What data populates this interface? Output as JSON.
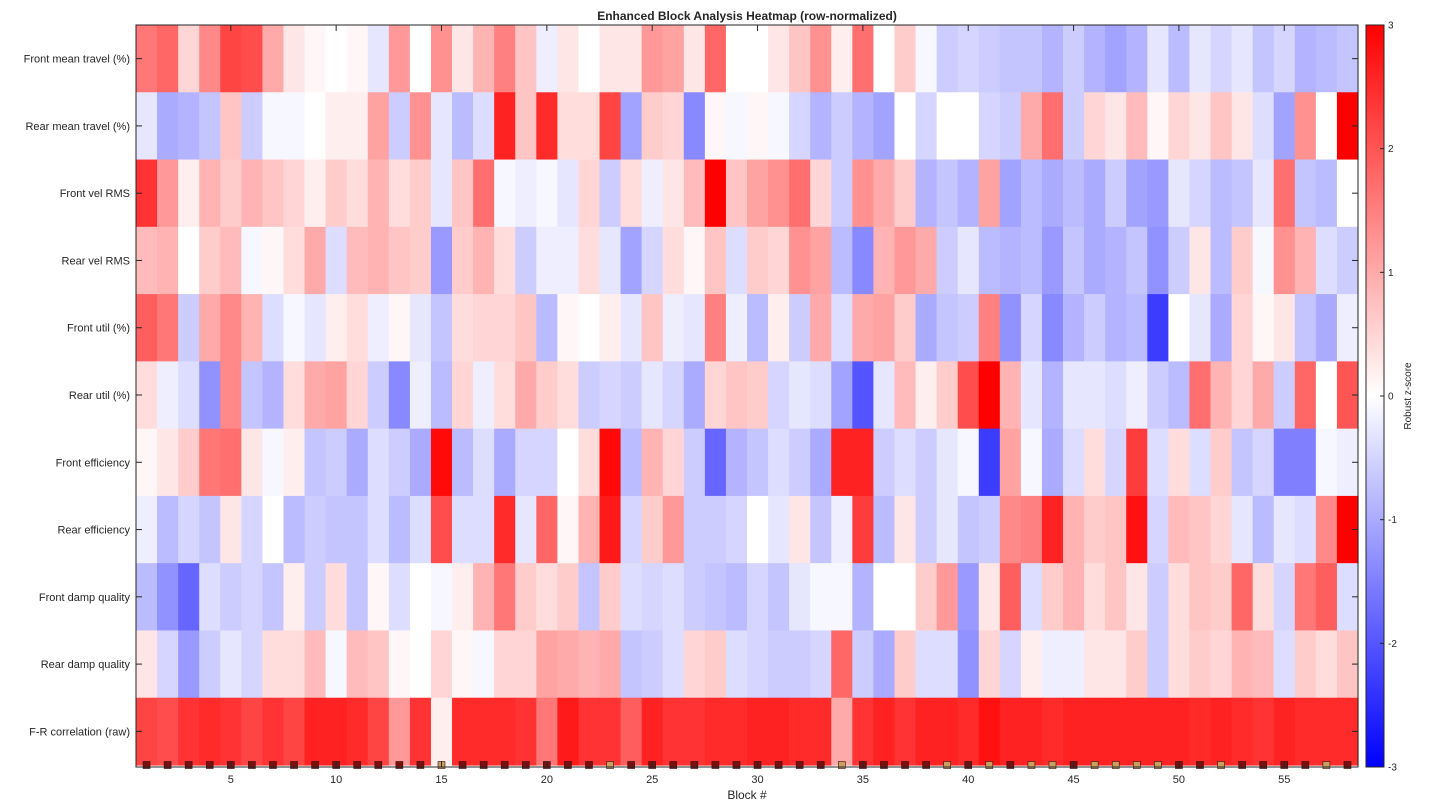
{
  "chart_data": {
    "type": "heatmap",
    "title": "Enhanced Block Analysis Heatmap (row-normalized)",
    "xlabel": "Block #",
    "ylabel": "",
    "x_range": [
      1,
      58
    ],
    "x_ticks": [
      5,
      10,
      15,
      20,
      25,
      30,
      35,
      40,
      45,
      50,
      55
    ],
    "rows": [
      "Front mean travel (%)",
      "Rear mean travel (%)",
      "Front vel RMS",
      "Rear vel RMS",
      "Front util (%)",
      "Rear util (%)",
      "Front efficiency",
      "Rear efficiency",
      "Front damp quality",
      "Rear damp quality",
      "F-R correlation (raw)"
    ],
    "colorbar": {
      "label": "Robust z-score",
      "range": [
        -3,
        3
      ],
      "ticks": [
        3,
        2,
        1,
        0,
        -1,
        -2,
        -3
      ],
      "colormap": "blue-white-red",
      "low_color": "#0000ff",
      "mid_color": "#ffffff",
      "high_color": "#ff0000"
    },
    "marker_colors": {
      "dark": "#7a0f0f",
      "highlight": "#c8a060"
    },
    "block_markers": [
      "dark",
      "dark",
      "dark",
      "dark",
      "dark",
      "dark",
      "dark",
      "dark",
      "dark",
      "dark",
      "dark",
      "dark",
      "dark",
      "dark",
      "highlight",
      "dark",
      "dark",
      "dark",
      "dark",
      "dark",
      "dark",
      "dark",
      "highlight",
      "dark",
      "dark",
      "dark",
      "dark",
      "dark",
      "dark",
      "dark",
      "dark",
      "dark",
      "dark",
      "highlight",
      "dark",
      "dark",
      "dark",
      "dark",
      "highlight",
      "dark",
      "highlight",
      "dark",
      "highlight",
      "highlight",
      "dark",
      "highlight",
      "highlight",
      "highlight",
      "highlight",
      "dark",
      "dark",
      "highlight",
      "dark",
      "dark",
      "dark",
      "dark",
      "highlight",
      "dark"
    ],
    "values": [
      [
        1.6,
        1.8,
        0.5,
        1.4,
        2.2,
        2.1,
        1.0,
        0.3,
        0.1,
        0.0,
        0.1,
        -0.3,
        1.2,
        0.0,
        1.3,
        0.3,
        0.9,
        1.5,
        0.7,
        -0.2,
        0.3,
        0.0,
        0.3,
        0.3,
        1.2,
        1.1,
        0.3,
        1.8,
        0.0,
        0.0,
        0.3,
        0.7,
        1.3,
        0.2,
        1.7,
        0.0,
        0.6,
        -0.1,
        -0.6,
        -0.5,
        -0.6,
        -0.7,
        -0.7,
        -0.9,
        -0.6,
        -0.9,
        -1.1,
        -0.9,
        -0.3,
        -0.8,
        -0.3,
        -0.5,
        -0.3,
        -0.7,
        -0.5,
        -0.9,
        -0.8,
        -0.7
      ],
      [
        -0.3,
        -1.0,
        -0.9,
        -0.7,
        0.7,
        -0.6,
        -0.1,
        -0.1,
        0.0,
        0.2,
        0.2,
        1.1,
        -0.6,
        1.3,
        -0.3,
        -0.8,
        -0.4,
        2.6,
        0.7,
        2.5,
        0.4,
        0.4,
        2.2,
        -1.1,
        0.6,
        0.5,
        -1.4,
        0.1,
        -0.1,
        0.1,
        -0.1,
        -0.5,
        -0.9,
        -0.6,
        -0.9,
        -1.1,
        0.0,
        -0.5,
        0.0,
        0.0,
        -0.5,
        -0.6,
        1.0,
        1.7,
        -0.6,
        0.5,
        0.3,
        0.8,
        0.1,
        0.5,
        0.3,
        0.7,
        0.3,
        -0.4,
        -1.1,
        1.3,
        0.0,
        3.0
      ],
      [
        2.4,
        1.2,
        0.2,
        0.9,
        0.6,
        0.9,
        0.7,
        0.5,
        0.2,
        0.6,
        0.4,
        0.9,
        0.4,
        0.6,
        -0.3,
        0.7,
        1.7,
        -0.1,
        -0.2,
        -0.1,
        -0.3,
        0.5,
        -0.6,
        0.4,
        -0.2,
        0.3,
        0.8,
        3.0,
        0.7,
        1.1,
        1.3,
        1.7,
        0.5,
        -0.6,
        1.3,
        1.0,
        0.6,
        -0.9,
        -0.7,
        -0.9,
        1.1,
        -1.1,
        -0.8,
        -1.0,
        -0.8,
        -1.0,
        -0.6,
        -1.1,
        -1.2,
        -0.3,
        -0.5,
        -0.8,
        -0.7,
        -0.3,
        1.7,
        -0.7,
        -0.8,
        0.0
      ],
      [
        0.8,
        0.9,
        0.0,
        0.6,
        0.8,
        -0.1,
        0.1,
        0.4,
        1.0,
        -0.4,
        0.8,
        0.9,
        0.7,
        0.6,
        -1.2,
        0.6,
        0.9,
        0.4,
        -0.6,
        -0.2,
        -0.2,
        0.4,
        -0.3,
        -1.1,
        -0.5,
        0.4,
        0.1,
        0.7,
        -0.4,
        0.6,
        0.5,
        1.3,
        1.1,
        -0.8,
        -1.4,
        0.9,
        1.2,
        1.0,
        -0.6,
        -0.3,
        -0.8,
        -0.9,
        -0.8,
        -1.2,
        -0.7,
        -1.0,
        -0.9,
        -0.7,
        -1.3,
        -0.6,
        0.3,
        -0.8,
        0.6,
        -0.1,
        1.3,
        0.9,
        -0.4,
        -0.6
      ],
      [
        1.9,
        1.6,
        -0.6,
        1.0,
        1.4,
        0.9,
        -0.4,
        -0.1,
        -0.3,
        0.2,
        0.4,
        -0.2,
        0.1,
        -0.3,
        -0.7,
        0.4,
        0.5,
        0.5,
        0.7,
        -0.8,
        0.1,
        0.0,
        0.2,
        -0.3,
        0.7,
        -0.2,
        -0.3,
        1.5,
        -0.2,
        -0.8,
        0.2,
        -0.6,
        1.0,
        -0.4,
        1.0,
        1.1,
        0.6,
        -1.0,
        -0.7,
        -0.6,
        1.5,
        -1.3,
        -0.5,
        -1.4,
        -0.9,
        -0.6,
        -0.9,
        -0.8,
        -2.3,
        0.0,
        -0.3,
        -1.0,
        0.5,
        0.1,
        0.3,
        -0.7,
        -1.0,
        -0.2
      ],
      [
        0.4,
        -0.2,
        -0.4,
        -1.3,
        1.4,
        -0.7,
        -0.9,
        0.4,
        1.0,
        1.1,
        0.5,
        -0.6,
        -1.4,
        -0.2,
        -0.8,
        0.5,
        -0.2,
        0.4,
        1.0,
        0.6,
        0.4,
        -0.6,
        -0.5,
        -0.6,
        -0.3,
        -0.5,
        -1.0,
        0.5,
        0.7,
        0.6,
        -0.5,
        -0.3,
        -0.4,
        -1.1,
        -2.0,
        -0.3,
        0.8,
        0.2,
        0.6,
        2.1,
        3.0,
        0.9,
        -0.3,
        -0.9,
        -0.3,
        -0.3,
        -0.4,
        -0.2,
        -0.6,
        -0.8,
        1.7,
        0.9,
        0.5,
        1.0,
        -0.6,
        1.8,
        0.0,
        2.0
      ],
      [
        0.1,
        0.3,
        0.6,
        1.6,
        1.7,
        0.3,
        -0.1,
        0.2,
        -0.7,
        -0.6,
        -1.0,
        -0.4,
        -0.6,
        -1.0,
        2.9,
        -0.8,
        -0.4,
        -1.0,
        -0.5,
        -0.5,
        0.0,
        0.4,
        2.9,
        -0.8,
        0.9,
        0.5,
        -0.6,
        -1.8,
        -0.9,
        -0.7,
        -0.4,
        -0.6,
        -1.0,
        2.6,
        2.6,
        -0.6,
        -0.4,
        -0.6,
        -0.3,
        -0.1,
        -2.3,
        1.1,
        -0.1,
        -1.0,
        -0.4,
        0.4,
        -0.5,
        2.3,
        -0.4,
        0.4,
        -0.4,
        0.6,
        -0.7,
        -0.5,
        -1.5,
        -1.5,
        -0.1,
        -0.2
      ],
      [
        -0.2,
        -0.8,
        -0.5,
        -0.7,
        0.3,
        -0.5,
        0.0,
        -0.8,
        -0.6,
        -0.7,
        -0.7,
        -0.4,
        -0.8,
        -0.4,
        2.1,
        -0.4,
        -0.4,
        2.5,
        -0.3,
        1.8,
        0.1,
        0.9,
        2.7,
        -0.5,
        0.6,
        1.2,
        -0.6,
        -0.6,
        -0.5,
        0.0,
        -0.3,
        0.3,
        -0.7,
        -0.2,
        2.3,
        -0.8,
        0.3,
        -0.6,
        -0.3,
        -0.7,
        -0.6,
        1.4,
        1.5,
        2.6,
        0.9,
        0.6,
        0.7,
        2.8,
        -0.5,
        0.8,
        0.7,
        0.5,
        -0.3,
        -0.8,
        -0.3,
        -0.4,
        1.4,
        3.0
      ],
      [
        -0.8,
        -1.3,
        -1.8,
        -0.4,
        -0.6,
        -0.5,
        -0.7,
        0.2,
        -0.6,
        0.4,
        -0.7,
        0.1,
        -0.4,
        0.0,
        -0.1,
        0.2,
        0.9,
        1.6,
        0.6,
        0.4,
        0.6,
        -0.7,
        0.6,
        -0.4,
        -0.5,
        -0.4,
        -0.6,
        -0.7,
        -0.8,
        -0.5,
        -0.7,
        -0.3,
        -0.1,
        -0.1,
        -0.9,
        0.0,
        0.0,
        0.6,
        1.2,
        -1.2,
        0.3,
        1.9,
        -0.4,
        0.6,
        0.9,
        0.4,
        0.7,
        0.3,
        -0.6,
        0.4,
        0.7,
        0.6,
        1.8,
        0.4,
        -0.5,
        1.6,
        1.9,
        -0.4
      ],
      [
        0.3,
        -0.5,
        -1.2,
        -0.6,
        -0.3,
        -0.5,
        0.4,
        0.4,
        0.8,
        -0.1,
        0.8,
        0.7,
        0.1,
        0.0,
        0.5,
        0.1,
        -0.1,
        0.5,
        0.5,
        1.1,
        1.0,
        0.9,
        1.0,
        -0.7,
        -0.6,
        -0.4,
        0.5,
        0.6,
        -0.4,
        -0.5,
        -0.6,
        -0.6,
        -0.5,
        1.8,
        -0.6,
        -1.0,
        0.6,
        -0.4,
        -0.4,
        -1.3,
        0.5,
        -0.5,
        0.2,
        -0.2,
        -0.2,
        0.3,
        0.3,
        0.6,
        -0.6,
        0.4,
        0.6,
        0.5,
        0.9,
        0.8,
        -0.4,
        0.6,
        0.4,
        0.7
      ],
      [
        2.2,
        2.1,
        2.4,
        2.5,
        2.4,
        2.2,
        2.4,
        2.2,
        2.6,
        2.6,
        2.5,
        2.2,
        1.2,
        2.4,
        0.2,
        2.5,
        2.5,
        2.5,
        2.4,
        1.6,
        2.7,
        2.4,
        2.4,
        1.9,
        2.6,
        2.4,
        2.4,
        2.5,
        2.5,
        2.6,
        2.6,
        2.5,
        2.5,
        1.0,
        2.4,
        2.6,
        2.4,
        2.6,
        2.6,
        2.5,
        2.8,
        2.6,
        2.6,
        2.5,
        2.6,
        2.6,
        2.6,
        2.6,
        2.6,
        2.6,
        2.5,
        2.6,
        2.5,
        2.4,
        2.6,
        2.5,
        2.5,
        2.5
      ]
    ]
  }
}
